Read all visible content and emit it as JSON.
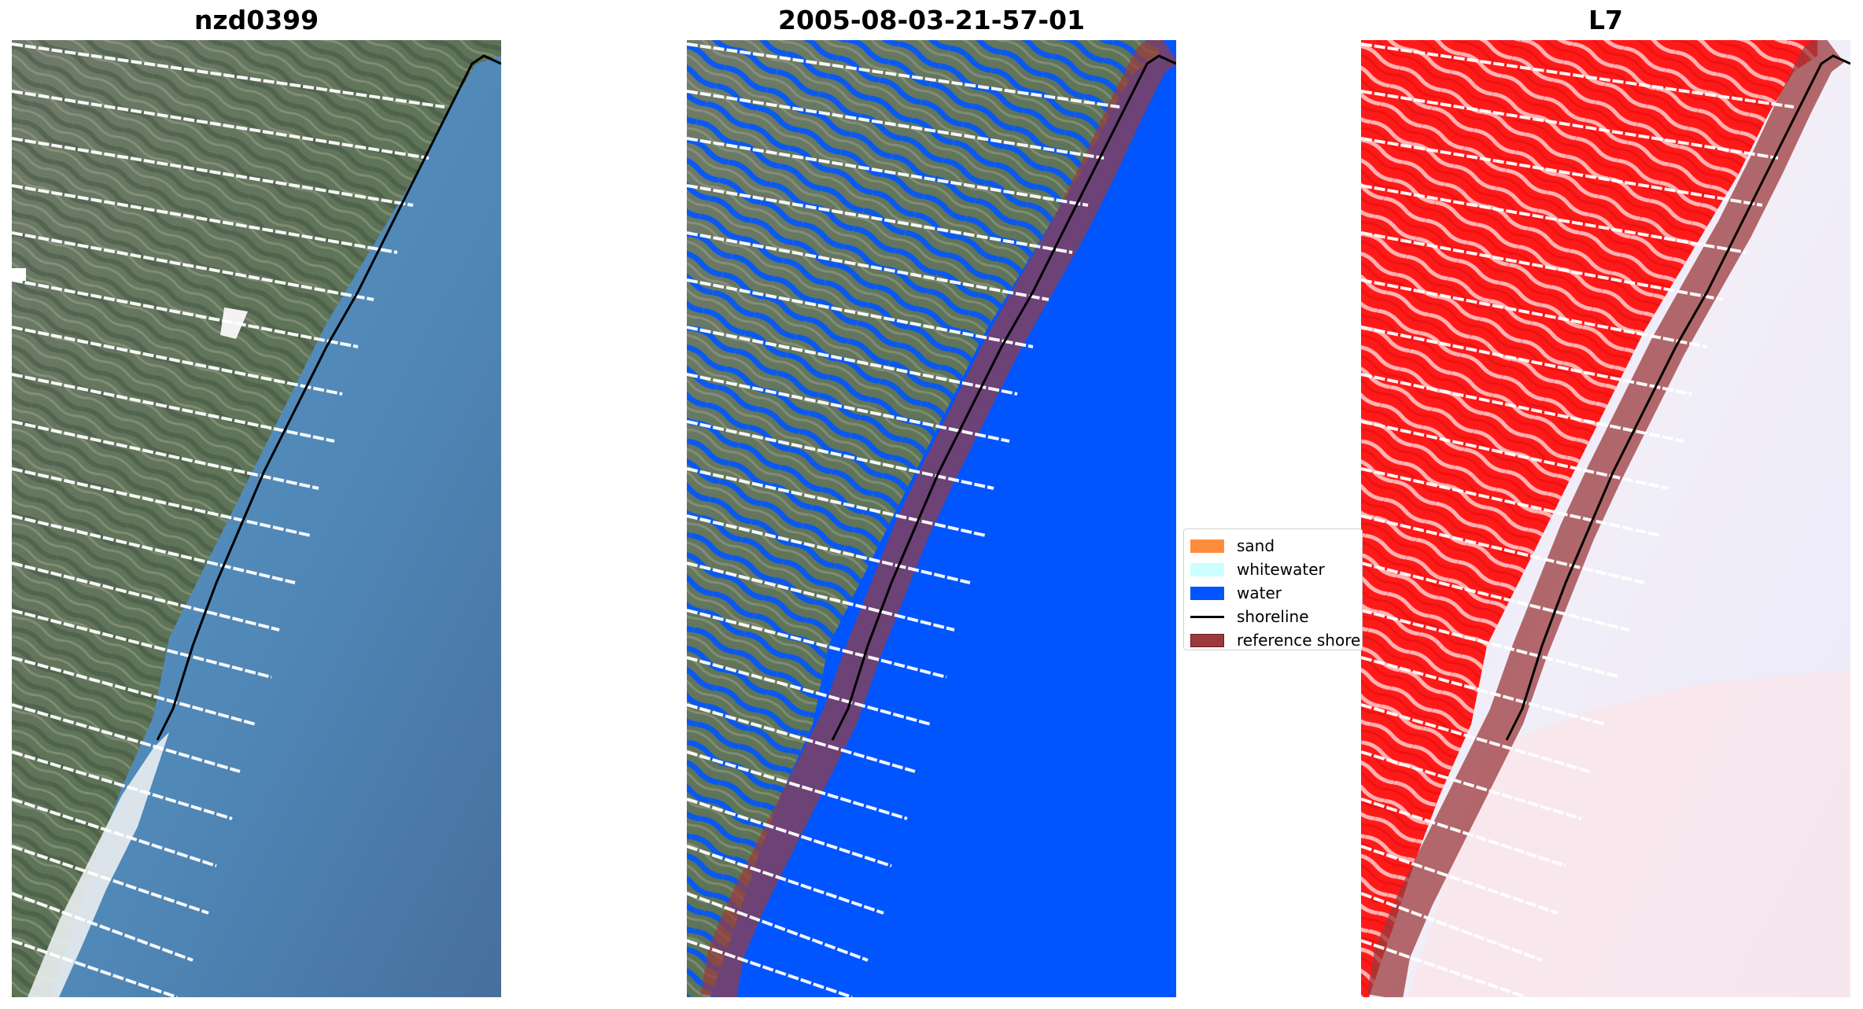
{
  "panels": [
    {
      "title": "nzd0399",
      "image": "true-color satellite image of coastline with detected shoreline"
    },
    {
      "title": "2005-08-03-21-57-01",
      "image": "classified image with water mask and reference shoreline buffer"
    },
    {
      "title": "L7",
      "image": "MNDWI index image (red land, blue-white water) with shoreline"
    }
  ],
  "legend": {
    "items": [
      {
        "label": "sand",
        "color": "#ff8c3c",
        "kind": "patch"
      },
      {
        "label": "whitewater",
        "color": "#ccffff",
        "kind": "patch"
      },
      {
        "label": "water",
        "color": "#0055ff",
        "kind": "patch"
      },
      {
        "label": "shoreline",
        "color": "#000000",
        "kind": "line"
      },
      {
        "label": "reference shore",
        "color": "#9b3a3c",
        "kind": "patch"
      }
    ]
  }
}
